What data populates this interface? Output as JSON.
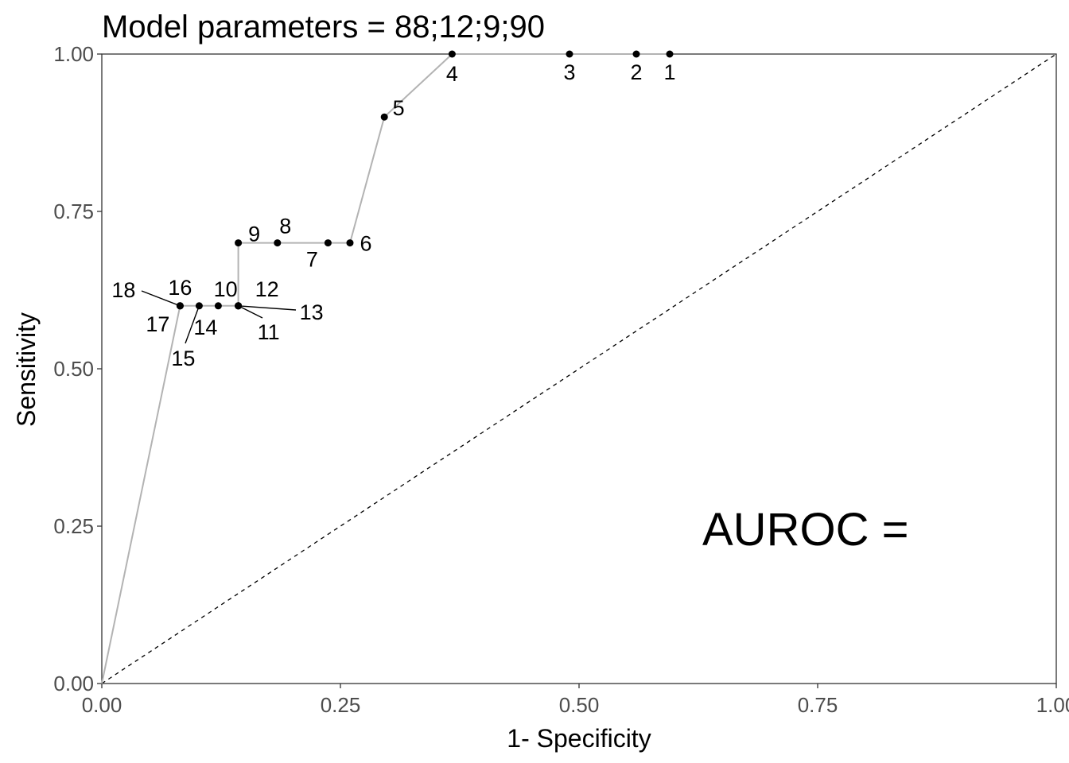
{
  "chart_data": {
    "type": "scatter",
    "title": "Model parameters = 88;12;9;90",
    "xlabel": "1- Specificity",
    "ylabel": "Sensitivity",
    "xlim": [
      0,
      1
    ],
    "ylim": [
      0,
      1
    ],
    "x_ticks": [
      "0.00",
      "0.25",
      "0.50",
      "0.75",
      "1.00"
    ],
    "y_ticks": [
      "0.00",
      "0.25",
      "0.50",
      "0.75",
      "1.00"
    ],
    "grid": false,
    "annotation": "AUROC =",
    "reference_line": {
      "from": [
        0,
        0
      ],
      "to": [
        1,
        1
      ],
      "style": "dashed"
    },
    "curve": [
      [
        0,
        0
      ],
      [
        0.082,
        0.6
      ],
      [
        0.102,
        0.6
      ],
      [
        0.122,
        0.6
      ],
      [
        0.143,
        0.6
      ],
      [
        0.143,
        0.7
      ],
      [
        0.184,
        0.7
      ],
      [
        0.237,
        0.7
      ],
      [
        0.26,
        0.7
      ],
      [
        0.296,
        0.9
      ],
      [
        0.367,
        1.0
      ],
      [
        0.49,
        1.0
      ],
      [
        0.56,
        1.0
      ],
      [
        0.595,
        1.0
      ]
    ],
    "points": [
      {
        "label": "1",
        "x": 0.595,
        "y": 1.0
      },
      {
        "label": "2",
        "x": 0.56,
        "y": 1.0
      },
      {
        "label": "3",
        "x": 0.49,
        "y": 1.0
      },
      {
        "label": "4",
        "x": 0.367,
        "y": 1.0
      },
      {
        "label": "5",
        "x": 0.296,
        "y": 0.9
      },
      {
        "label": "6",
        "x": 0.26,
        "y": 0.7
      },
      {
        "label": "7",
        "x": 0.237,
        "y": 0.7
      },
      {
        "label": "8",
        "x": 0.184,
        "y": 0.7
      },
      {
        "label": "9",
        "x": 0.143,
        "y": 0.7
      },
      {
        "label": "10",
        "x": 0.143,
        "y": 0.6
      },
      {
        "label": "11",
        "x": 0.143,
        "y": 0.6
      },
      {
        "label": "12",
        "x": 0.143,
        "y": 0.6
      },
      {
        "label": "13",
        "x": 0.143,
        "y": 0.6
      },
      {
        "label": "14",
        "x": 0.122,
        "y": 0.6
      },
      {
        "label": "15",
        "x": 0.102,
        "y": 0.6
      },
      {
        "label": "16",
        "x": 0.082,
        "y": 0.6
      },
      {
        "label": "17",
        "x": 0.082,
        "y": 0.6
      },
      {
        "label": "18",
        "x": 0.082,
        "y": 0.6
      }
    ]
  }
}
